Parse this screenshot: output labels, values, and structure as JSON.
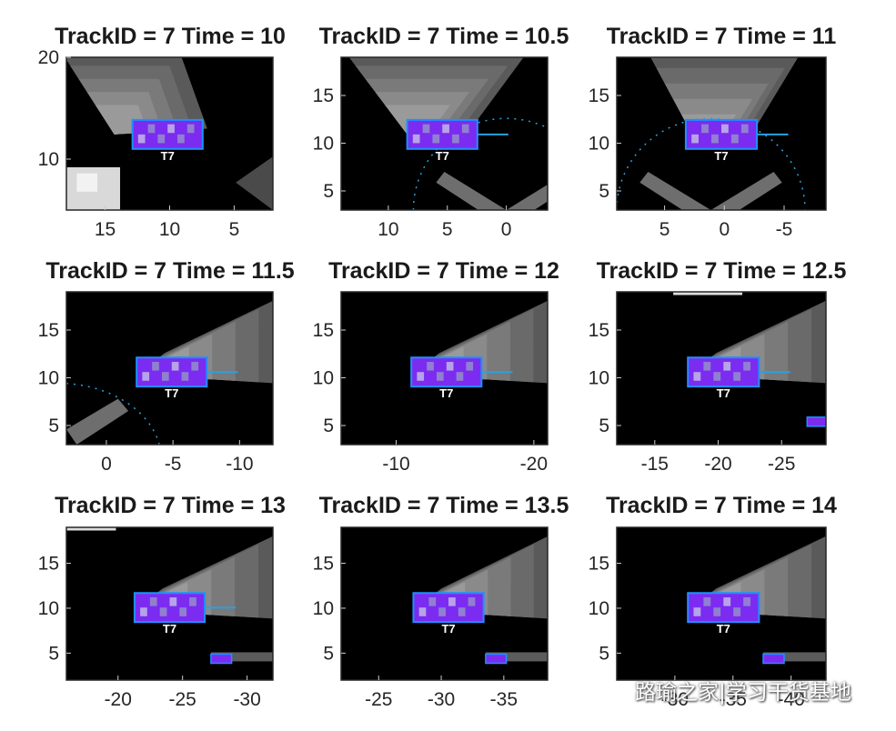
{
  "colors": {
    "background": "#000000",
    "grid_cell": "#7a7a7a",
    "occupancy": "#7b2cf0",
    "track_box": "#1e90ff",
    "detections": "#2aa0e0",
    "ego": "#dddddd"
  },
  "chart_data": [
    {
      "type": "heatmap",
      "title": "TrackID = 7 Time = 10",
      "x_reversed": true,
      "ylim": [
        5,
        20
      ],
      "xticks": [
        15,
        10,
        5
      ],
      "yticks": [
        10,
        20
      ],
      "track_label": "T7"
    },
    {
      "type": "heatmap",
      "title": "TrackID = 7 Time = 10.5",
      "x_reversed": true,
      "ylim": [
        3,
        19
      ],
      "xticks": [
        10,
        5,
        0
      ],
      "yticks": [
        5,
        10,
        15
      ],
      "track_label": "T7"
    },
    {
      "type": "heatmap",
      "title": "TrackID = 7 Time = 11",
      "x_reversed": true,
      "ylim": [
        3,
        19
      ],
      "xticks": [
        5,
        0,
        -5
      ],
      "yticks": [
        5,
        10,
        15
      ],
      "track_label": "T7"
    },
    {
      "type": "heatmap",
      "title": "TrackID = 7 Time = 11.5",
      "x_reversed": true,
      "ylim": [
        3,
        19
      ],
      "xticks": [
        0,
        -5,
        -10
      ],
      "yticks": [
        5,
        10,
        15
      ],
      "track_label": "T7"
    },
    {
      "type": "heatmap",
      "title": "TrackID = 7 Time = 12",
      "x_reversed": true,
      "ylim": [
        3,
        19
      ],
      "xticks": [
        -10,
        -20
      ],
      "yticks": [
        5,
        10,
        15
      ],
      "track_label": "T7"
    },
    {
      "type": "heatmap",
      "title": "TrackID = 7 Time = 12.5",
      "x_reversed": true,
      "ylim": [
        3,
        19
      ],
      "xticks": [
        -15,
        -20,
        -25
      ],
      "yticks": [
        5,
        10,
        15
      ],
      "track_label": "T7"
    },
    {
      "type": "heatmap",
      "title": "TrackID = 7 Time = 13",
      "x_reversed": true,
      "ylim": [
        2,
        19
      ],
      "xticks": [
        -20,
        -25,
        -30
      ],
      "yticks": [
        5,
        10,
        15
      ],
      "track_label": "T7"
    },
    {
      "type": "heatmap",
      "title": "TrackID = 7 Time = 13.5",
      "x_reversed": true,
      "ylim": [
        2,
        19
      ],
      "xticks": [
        -25,
        -30,
        -35
      ],
      "yticks": [
        5,
        10,
        15
      ],
      "track_label": "T7"
    },
    {
      "type": "heatmap",
      "title": "TrackID = 7 Time = 14",
      "x_reversed": true,
      "ylim": [
        2,
        19
      ],
      "xticks": [
        -30,
        -35,
        -40
      ],
      "yticks": [
        5,
        10,
        15
      ],
      "track_label": "T7"
    }
  ],
  "watermark": {
    "text": "路瑜之家|学习干货基地",
    "icon": "wechat-icon"
  }
}
